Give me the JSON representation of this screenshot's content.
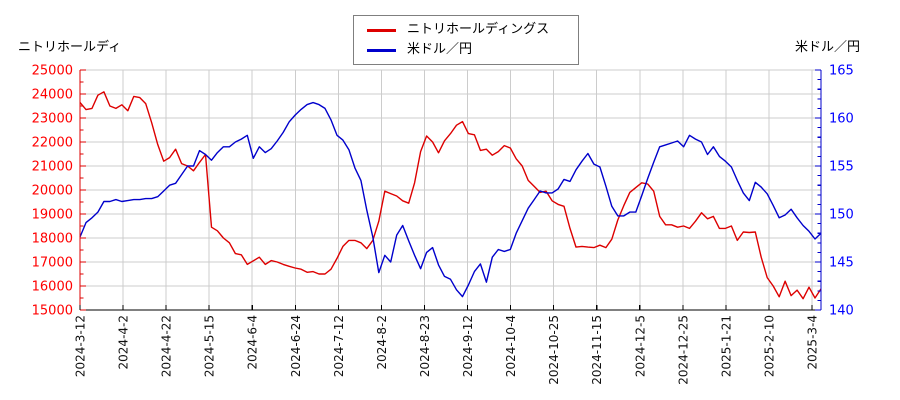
{
  "header": {
    "left_axis_title": "ニトリホールディ",
    "right_axis_title": "米ドル／円"
  },
  "legend": {
    "items": [
      {
        "label": "ニトリホールディングス",
        "color": "#dd0000"
      },
      {
        "label": "米ドル／円",
        "color": "#0000cc"
      }
    ]
  },
  "chart_data": {
    "type": "line",
    "title": "",
    "grid": true,
    "legend_position": "top-center",
    "x_tick_labels": [
      "2024-3-12",
      "2024-4-2",
      "2024-4-22",
      "2024-5-15",
      "2024-6-4",
      "2024-6-24",
      "2024-7-12",
      "2024-8-2",
      "2024-8-23",
      "2024-9-12",
      "2024-10-4",
      "2024-10-25",
      "2024-11-15",
      "2024-12-5",
      "2024-12-25",
      "2025-1-21",
      "2025-2-10",
      "2025-3-4"
    ],
    "x_sampling": "each series holds 125 points evenly spaced across the x-axis from 2024-3-12 to just past the 2025-3-4 tick",
    "left_axis": {
      "title": "ニトリホールディ",
      "min": 15000,
      "max": 25000,
      "tick_step": 1000,
      "minor_step": 500,
      "label_color": "#ff0000",
      "tick_labels": [
        "15000",
        "16000",
        "17000",
        "18000",
        "19000",
        "20000",
        "21000",
        "22000",
        "23000",
        "24000",
        "25000"
      ]
    },
    "right_axis": {
      "title": "米ドル／円",
      "min": 140,
      "max": 165,
      "tick_step": 5,
      "minor_step": 1,
      "label_color": "#0000ff",
      "tick_labels": [
        "140",
        "145",
        "150",
        "155",
        "160",
        "165"
      ]
    },
    "series": [
      {
        "name": "ニトリホールディングス",
        "axis": "left",
        "color": "#dd0000",
        "values": [
          23650,
          23350,
          23400,
          23950,
          24090,
          23500,
          23400,
          23550,
          23300,
          23900,
          23850,
          23600,
          22800,
          21900,
          21200,
          21350,
          21700,
          21100,
          21000,
          20800,
          21150,
          21480,
          18450,
          18300,
          18000,
          17800,
          17350,
          17300,
          16900,
          17050,
          17200,
          16900,
          17060,
          17000,
          16900,
          16820,
          16750,
          16700,
          16570,
          16600,
          16500,
          16500,
          16700,
          17150,
          17650,
          17900,
          17900,
          17800,
          17560,
          17900,
          18700,
          19950,
          19850,
          19750,
          19550,
          19450,
          20300,
          21600,
          22250,
          22000,
          21550,
          22050,
          22350,
          22700,
          22850,
          22350,
          22300,
          21650,
          21700,
          21450,
          21600,
          21850,
          21750,
          21300,
          21000,
          20400,
          20150,
          19900,
          19950,
          19550,
          19400,
          19320,
          18400,
          17620,
          17650,
          17620,
          17600,
          17700,
          17600,
          17950,
          18750,
          19350,
          19900,
          20100,
          20300,
          20250,
          19950,
          18900,
          18550,
          18550,
          18450,
          18500,
          18400,
          18700,
          19050,
          18800,
          18900,
          18400,
          18400,
          18500,
          17900,
          18250,
          18230,
          18250,
          17200,
          16350,
          16000,
          15550,
          16200,
          15600,
          15830,
          15470,
          15950,
          15500,
          15880
        ]
      },
      {
        "name": "米ドル／円",
        "axis": "right",
        "color": "#0000cc",
        "values": [
          147.6,
          149.1,
          149.6,
          150.2,
          151.3,
          151.3,
          151.5,
          151.3,
          151.4,
          151.5,
          151.5,
          151.6,
          151.6,
          151.8,
          152.4,
          153.0,
          153.2,
          154.1,
          155.0,
          155.0,
          156.6,
          156.2,
          155.6,
          156.4,
          157.0,
          157.0,
          157.5,
          157.8,
          158.2,
          155.8,
          157.0,
          156.4,
          156.8,
          157.6,
          158.5,
          159.6,
          160.3,
          160.9,
          161.4,
          161.6,
          161.4,
          161.0,
          159.8,
          158.2,
          157.7,
          156.7,
          154.8,
          153.5,
          150.4,
          147.6,
          143.9,
          145.7,
          145.0,
          147.8,
          148.8,
          147.2,
          145.7,
          144.3,
          146.0,
          146.5,
          144.7,
          143.5,
          143.2,
          142.1,
          141.4,
          142.6,
          144.0,
          144.8,
          142.9,
          145.5,
          146.3,
          146.1,
          146.3,
          148.0,
          149.3,
          150.6,
          151.5,
          152.4,
          152.2,
          152.2,
          152.6,
          153.6,
          153.4,
          154.6,
          155.5,
          156.3,
          155.2,
          154.9,
          152.9,
          150.8,
          149.8,
          149.8,
          150.2,
          150.2,
          151.9,
          153.7,
          155.4,
          157.0,
          157.2,
          157.4,
          157.6,
          157.0,
          158.2,
          157.8,
          157.5,
          156.2,
          157.0,
          156.0,
          155.5,
          154.9,
          153.5,
          152.2,
          151.4,
          153.3,
          152.8,
          152.1,
          150.9,
          149.6,
          149.9,
          150.5,
          149.6,
          148.8,
          148.2,
          147.4,
          148.0
        ]
      }
    ]
  }
}
